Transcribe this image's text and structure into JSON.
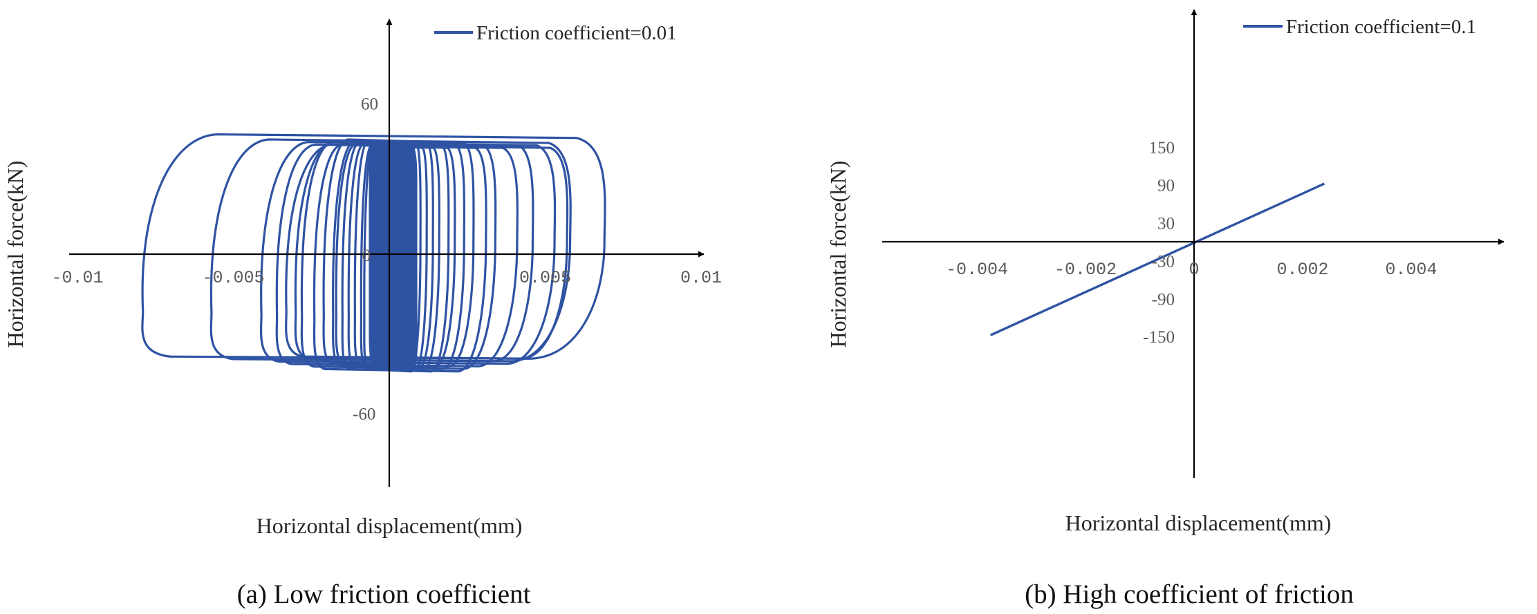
{
  "chart_data": [
    {
      "panel": "a",
      "type": "line",
      "caption": "(a) Low friction coefficient",
      "xlabel": "Horizontal  displacement(mm)",
      "ylabel": "Horizontal  force(kN)",
      "xlim": [
        -0.01,
        0.01
      ],
      "ylim": [
        -60,
        60
      ],
      "x_ticks": [
        {
          "value": -0.01,
          "label": "-0.01"
        },
        {
          "value": -0.005,
          "label": "-0.005"
        },
        {
          "value": 0,
          "label": "0"
        },
        {
          "value": 0.005,
          "label": "0.005"
        },
        {
          "value": 0.01,
          "label": "0.01"
        }
      ],
      "y_ticks": [
        {
          "value": 60,
          "label": "60"
        },
        {
          "value": -60,
          "label": "-60"
        }
      ],
      "origin_label": "0",
      "legend_position": "top-right",
      "series": [
        {
          "name": "Friction coefficient=0.01",
          "color": "#2E53A3",
          "loops": [
            {
              "dmin": -0.0079,
              "dmax": 0.0069,
              "fup": 47,
              "flo": -41
            },
            {
              "dmin": -0.0057,
              "dmax": 0.0058,
              "fup": 45,
              "flo": -42
            },
            {
              "dmin": -0.0041,
              "dmax": 0.0053,
              "fup": 44,
              "flo": -43
            },
            {
              "dmin": -0.0033,
              "dmax": 0.0057,
              "fup": 43,
              "flo": -41
            },
            {
              "dmin": -0.0036,
              "dmax": 0.0041,
              "fup": 43,
              "flo": -44
            },
            {
              "dmin": -0.003,
              "dmax": 0.0046,
              "fup": 44,
              "flo": -42
            },
            {
              "dmin": -0.0028,
              "dmax": 0.0034,
              "fup": 44,
              "flo": -45
            },
            {
              "dmin": -0.0024,
              "dmax": 0.0031,
              "fup": 43,
              "flo": -46
            },
            {
              "dmin": -0.0021,
              "dmax": 0.0027,
              "fup": 45,
              "flo": -44
            },
            {
              "dmin": -0.0018,
              "dmax": 0.0024,
              "fup": 44,
              "flo": -45
            },
            {
              "dmin": -0.0017,
              "dmax": 0.0021,
              "fup": 43,
              "flo": -44
            },
            {
              "dmin": -0.0015,
              "dmax": 0.0019,
              "fup": 44,
              "flo": -46
            },
            {
              "dmin": -0.0013,
              "dmax": 0.0016,
              "fup": 43,
              "flo": -45
            },
            {
              "dmin": -0.0011,
              "dmax": 0.0014,
              "fup": 44,
              "flo": -44
            },
            {
              "dmin": -0.0009,
              "dmax": 0.0012,
              "fup": 43,
              "flo": -45
            },
            {
              "dmin": -0.0008,
              "dmax": 0.001,
              "fup": 44,
              "flo": -46
            },
            {
              "dmin": -0.0006,
              "dmax": 0.0008,
              "fup": 43,
              "flo": -44
            },
            {
              "dmin": -0.0005,
              "dmax": 0.0007,
              "fup": 44,
              "flo": -45
            }
          ]
        }
      ]
    },
    {
      "panel": "b",
      "type": "line",
      "caption": "(b) High coefficient of friction",
      "xlabel": "Horizontal  displacement(mm)",
      "ylabel": "Horizontal  force(kN)",
      "xlim": [
        -0.004,
        0.004
      ],
      "ylim": [
        -150,
        150
      ],
      "x_ticks": [
        {
          "value": -0.004,
          "label": "-0.004"
        },
        {
          "value": -0.002,
          "label": "-0.002"
        },
        {
          "value": 0,
          "label": "0"
        },
        {
          "value": 0.002,
          "label": "0.002"
        },
        {
          "value": 0.004,
          "label": "0.004"
        }
      ],
      "y_ticks": [
        {
          "value": 150,
          "label": "150"
        },
        {
          "value": 90,
          "label": "90"
        },
        {
          "value": 30,
          "label": "30"
        },
        {
          "value": -30,
          "label": "-30"
        },
        {
          "value": -90,
          "label": "-90"
        },
        {
          "value": -150,
          "label": "-150"
        }
      ],
      "legend_position": "top-right",
      "series": [
        {
          "name": "Friction coefficient=0.1",
          "color": "#2E53A3",
          "x": [
            -0.00375,
            0.0024
          ],
          "y": [
            -148,
            92
          ]
        }
      ]
    }
  ]
}
